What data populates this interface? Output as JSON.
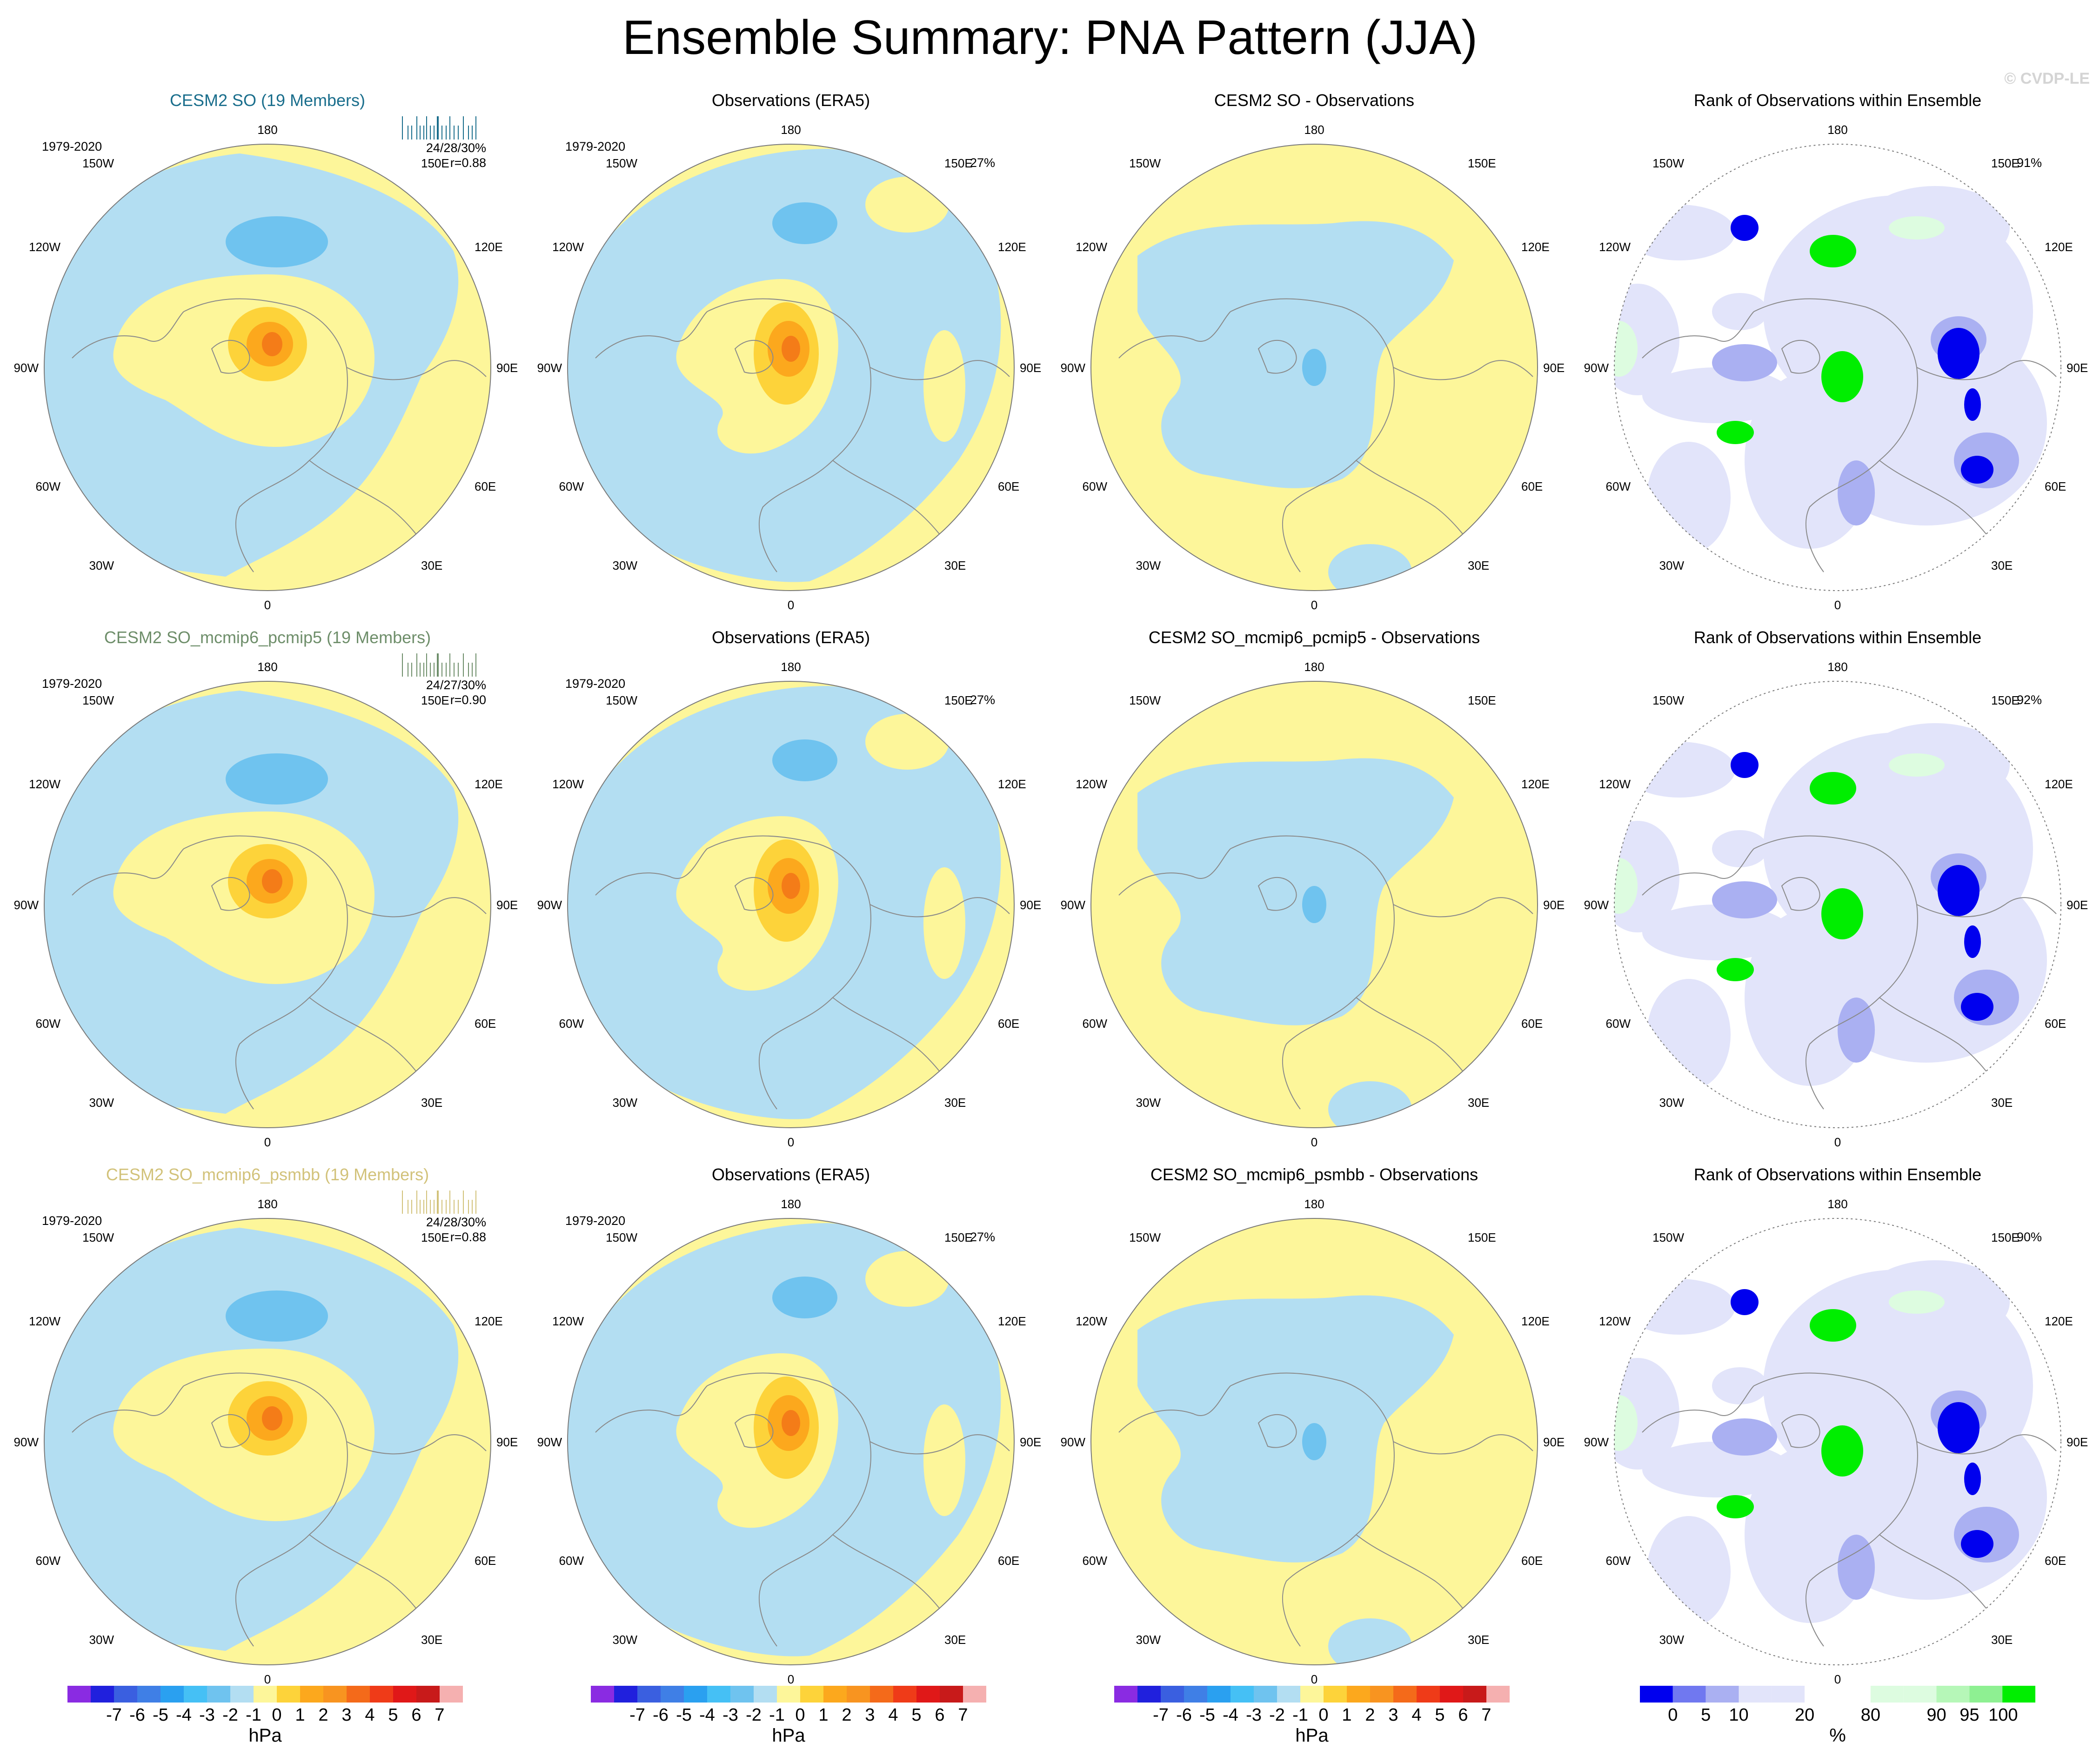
{
  "title": "Ensemble Summary: PNA Pattern (JJA)",
  "watermark": "© CVDP-LE",
  "colors": {
    "ocean_blue": "#b3def2",
    "blue_mid": "#6fc3ef",
    "blue_dark": "#2c87d9",
    "yellow": "#fdf69a",
    "yellow_orange": "#fdd33a",
    "orange": "#fca81d",
    "dark_orange": "#f47c18",
    "lavender": "#e2e4fa",
    "lavender_mid": "#aab0f2",
    "rank_blue": "#0000ee",
    "rank_green": "#00ee00",
    "pale_green": "#ddfce0",
    "coast": "#8a8a8a",
    "title_teal": "#1a6e8c",
    "title_green": "#6e8e6a",
    "title_khaki": "#d2c27a"
  },
  "longitude_labels": {
    "top": "180",
    "bottom": "0",
    "left": "90W",
    "right": "90E",
    "ul": "150W",
    "ur": "150E",
    "ul2": "120W",
    "ur2": "120E",
    "ll": "60W",
    "lr": "60E",
    "ll2": "30W",
    "lr2": "30E"
  },
  "rows": [
    {
      "model": {
        "title": "CESM2 SO (19 Members)",
        "period": "1979-2020",
        "stats_line1": "24/28/30%",
        "stats_line2": "r=0.88"
      },
      "obs": {
        "title": "Observations (ERA5)",
        "period": "1979-2020",
        "pct": "27%"
      },
      "diff": {
        "title": "CESM2 SO - Observations"
      },
      "rank": {
        "title": "Rank of Observations within Ensemble",
        "pct": "91%"
      }
    },
    {
      "model": {
        "title": "CESM2 SO_mcmip6_pcmip5 (19 Members)",
        "period": "1979-2020",
        "stats_line1": "24/27/30%",
        "stats_line2": "r=0.90"
      },
      "obs": {
        "title": "Observations (ERA5)",
        "period": "1979-2020",
        "pct": "27%"
      },
      "diff": {
        "title": "CESM2 SO_mcmip6_pcmip5 - Observations"
      },
      "rank": {
        "title": "Rank of Observations within Ensemble",
        "pct": "92%"
      }
    },
    {
      "model": {
        "title": "CESM2 SO_mcmip6_psmbb (19 Members)",
        "period": "1979-2020",
        "stats_line1": "24/28/30%",
        "stats_line2": "r=0.88"
      },
      "obs": {
        "title": "Observations (ERA5)",
        "period": "1979-2020",
        "pct": "27%"
      },
      "diff": {
        "title": "CESM2 SO_mcmip6_psmbb - Observations"
      },
      "rank": {
        "title": "Rank of Observations within Ensemble",
        "pct": "90%"
      }
    }
  ],
  "colorbars": {
    "hpa": {
      "unit": "hPa",
      "labels": [
        "-7",
        "-6",
        "-5",
        "-4",
        "-3",
        "-2",
        "-1",
        "0",
        "1",
        "2",
        "3",
        "4",
        "5",
        "6",
        "7"
      ],
      "colors": [
        "#8a2be2",
        "#2020dd",
        "#3a5fe0",
        "#3f7fe6",
        "#2aa0f0",
        "#45c0f5",
        "#6fc3ef",
        "#b3def2",
        "#fdf69a",
        "#fdd33a",
        "#fca81d",
        "#f89420",
        "#f46a1a",
        "#ef3b18",
        "#e01818",
        "#c81a1a",
        "#f5b0b0"
      ]
    },
    "rank": {
      "unit": "%",
      "labels": [
        "0",
        "5",
        "10",
        "20",
        "80",
        "90",
        "95",
        "100"
      ],
      "colors": [
        "#0000ee",
        "#7078f0",
        "#aab0f2",
        "#e2e4fa",
        "#e2e4fa",
        "#ffffff",
        "#ffffff",
        "#ddfce0",
        "#ddfce0",
        "#b6f7b8",
        "#8ef092",
        "#00ee00"
      ]
    }
  }
}
